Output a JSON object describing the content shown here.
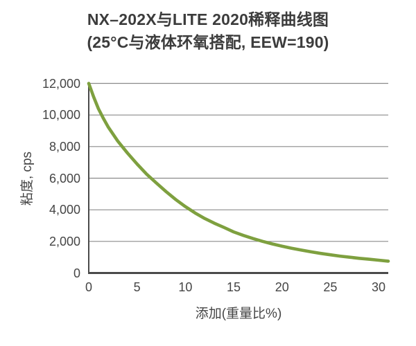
{
  "title": "NX–202X与LITE 2020稀释曲线图",
  "subtitle": "(25°C与液体环氧搭配, EEW=190)",
  "chart_data": {
    "type": "line",
    "title": "NX–202X与LITE 2020稀释曲线图",
    "subtitle": "(25°C与液体环氧搭配, EEW=190)",
    "xlabel": "添加(重量比%)",
    "ylabel": "粘度, cps",
    "xlim": [
      0,
      31
    ],
    "ylim": [
      0,
      12000
    ],
    "xticks": [
      0,
      5,
      10,
      15,
      20,
      25,
      30
    ],
    "xtick_labels": [
      "0",
      "5",
      "10",
      "15",
      "20",
      "25",
      "30"
    ],
    "yticks": [
      0,
      2000,
      4000,
      6000,
      8000,
      10000,
      12000
    ],
    "ytick_labels": [
      "0",
      "2,000",
      "4,000",
      "6,000",
      "8,000",
      "10,000",
      "12,000"
    ],
    "grid": "horizontal",
    "legend": "none",
    "series": [
      {
        "name": "NX-202X稀释曲线",
        "x": [
          0,
          0.5,
          1,
          1.5,
          2,
          3,
          4,
          5,
          6,
          7,
          8,
          9,
          10,
          11,
          12,
          13,
          14,
          15,
          16,
          17,
          18,
          19,
          20,
          21,
          22,
          23,
          24,
          25,
          26,
          27,
          28,
          29,
          30,
          31
        ],
        "y": [
          12000,
          11150,
          10400,
          9800,
          9250,
          8350,
          7600,
          6900,
          6250,
          5700,
          5150,
          4650,
          4200,
          3800,
          3450,
          3150,
          2880,
          2600,
          2380,
          2180,
          2000,
          1840,
          1700,
          1570,
          1450,
          1340,
          1240,
          1150,
          1070,
          1000,
          930,
          870,
          810,
          750
        ]
      }
    ],
    "colors": {
      "line": "#7EA03F",
      "grid": "#8A8A8A",
      "axis": "#4A4A4A",
      "text": "#454545",
      "title_text": "#3C3C3C",
      "background": "#FFFFFF"
    }
  }
}
